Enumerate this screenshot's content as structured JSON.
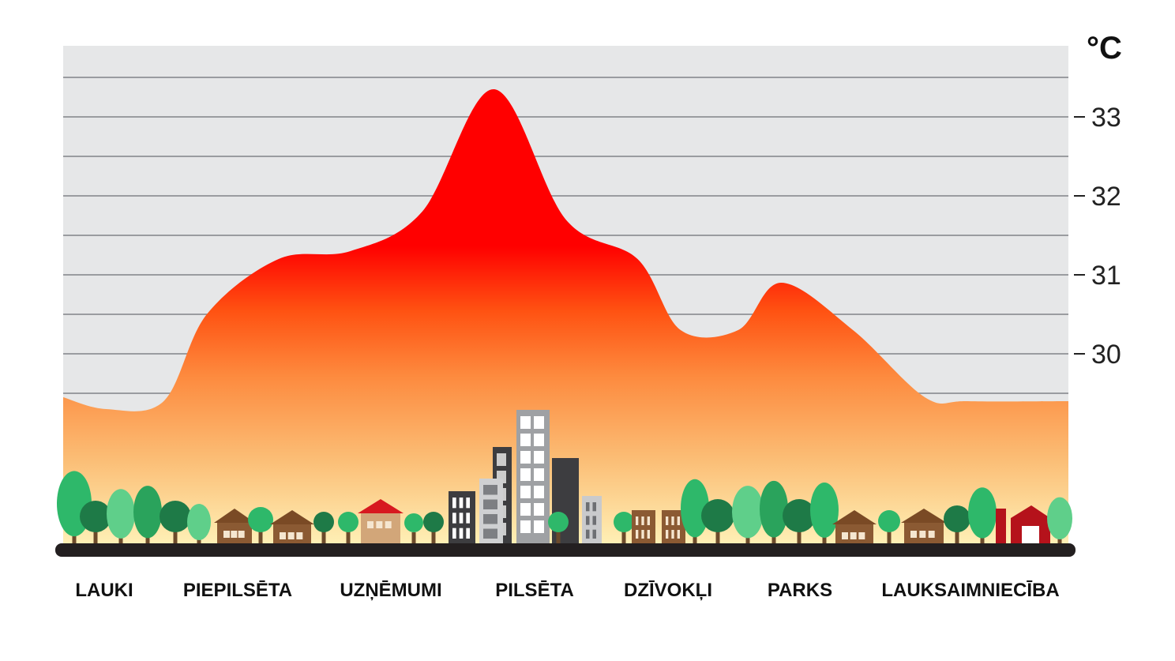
{
  "chart_data": {
    "type": "area",
    "unit": "°C",
    "categories": [
      "LAUKI",
      "PIEPILSĒTA",
      "UZŅĒMUMI",
      "PILSĒTA",
      "DZĪVOKĻI",
      "PARKS",
      "LAUKSAIMNIECĪBA"
    ],
    "y_ticks": [
      30,
      31,
      32,
      33
    ],
    "ylim": [
      27.5,
      33.9
    ],
    "grid": true,
    "series": [
      {
        "x": [
          0,
          0.3,
          0.7,
          1.0,
          1.5,
          2.0,
          2.5,
          3.0,
          3.5,
          4.0,
          4.3,
          4.7,
          5.0,
          5.5,
          6.0,
          6.3,
          7.0
        ],
        "values": [
          29.45,
          29.3,
          29.4,
          30.5,
          31.2,
          31.3,
          31.8,
          33.35,
          31.7,
          31.2,
          30.3,
          30.3,
          30.9,
          30.3,
          29.45,
          29.4,
          29.4
        ]
      }
    ],
    "colors": {
      "background": "#e6e7e8",
      "grid": "#9a9ca0",
      "fill_top": "#ff0000",
      "fill_mid": "#ff6a1a",
      "fill_low": "#fbb96b",
      "fill_bottom": "#fff3b8",
      "ground": "#231f20"
    }
  },
  "scene": {
    "icons": [
      "tree-icon",
      "house-icon",
      "building-icon",
      "barn-icon"
    ]
  }
}
